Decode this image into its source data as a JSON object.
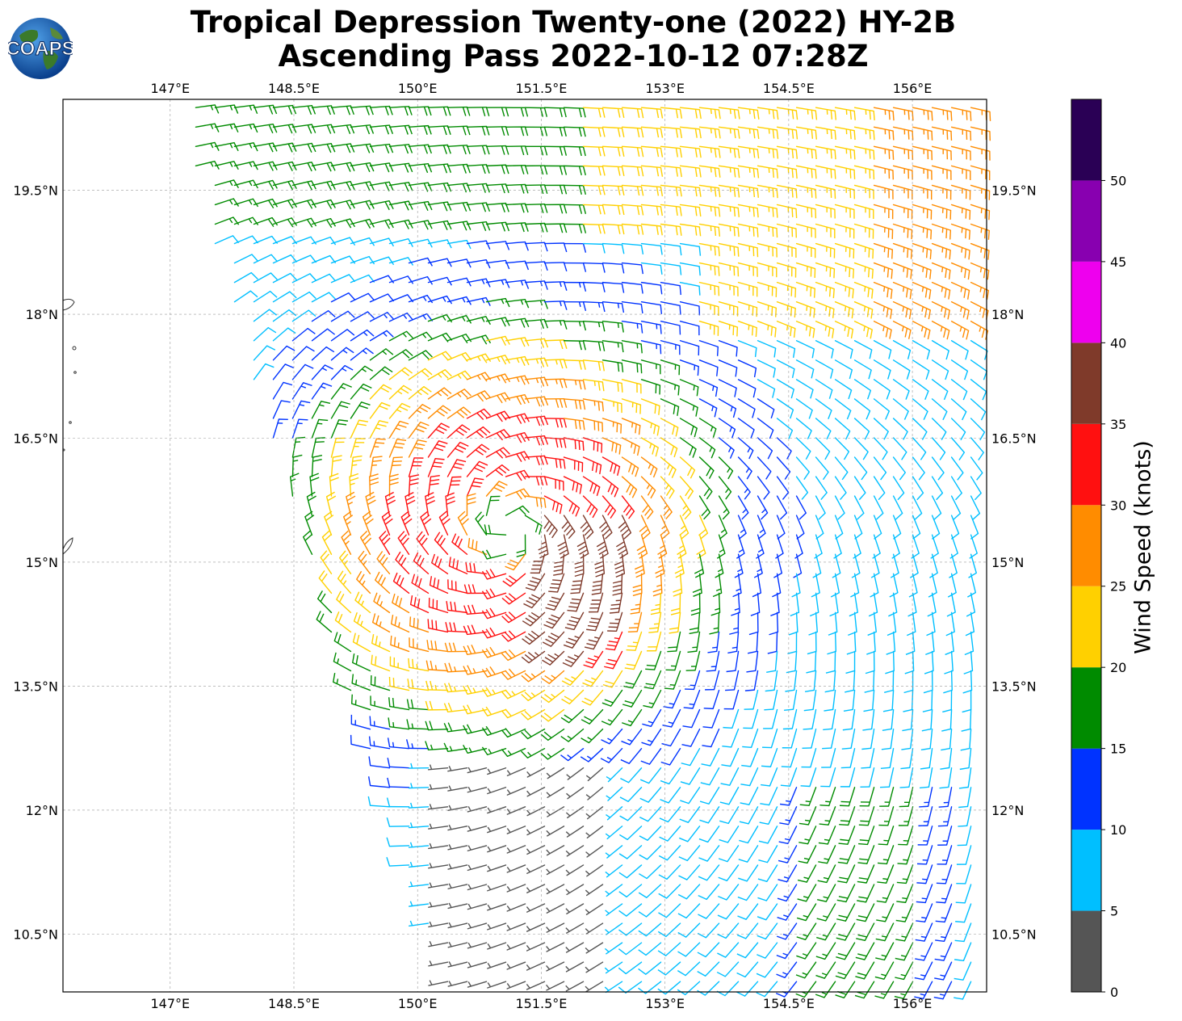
{
  "title_line1": "Tropical Depression Twenty-one (2022) HY-2B",
  "title_line2": "Ascending Pass 2022-10-12 07:28Z",
  "logo": {
    "text": "COAPS",
    "icon": "globe-logo-icon"
  },
  "map": {
    "lon_ticks": [
      "147°E",
      "148.5°E",
      "150°E",
      "151.5°E",
      "153°E",
      "154.5°E",
      "156°E"
    ],
    "lon_values": [
      147,
      148.5,
      150,
      151.5,
      153,
      154.5,
      156
    ],
    "lat_ticks": [
      "19.5°N",
      "18°N",
      "16.5°N",
      "15°N",
      "13.5°N",
      "12°N",
      "10.5°N"
    ],
    "lat_values": [
      19.5,
      18,
      16.5,
      15,
      13.5,
      12,
      10.5
    ],
    "lon_range": [
      145.7,
      156.9
    ],
    "lat_range": [
      9.8,
      20.6
    ],
    "grid": true,
    "storm_center": {
      "lon": 151.1,
      "lat": 15.4
    }
  },
  "colorbar": {
    "label": "Wind Speed (knots)",
    "ticks": [
      "0",
      "5",
      "10",
      "15",
      "20",
      "25",
      "30",
      "35",
      "40",
      "45",
      "50"
    ],
    "bounds": [
      0,
      5,
      10,
      15,
      20,
      25,
      30,
      35,
      40,
      45,
      50,
      55
    ],
    "colors": [
      "#555555",
      "#00bfff",
      "#0033ff",
      "#008b00",
      "#ffd000",
      "#ff8c00",
      "#ff1010",
      "#7f3a2a",
      "#ee00ee",
      "#8800b0",
      "#2a0055"
    ]
  }
}
